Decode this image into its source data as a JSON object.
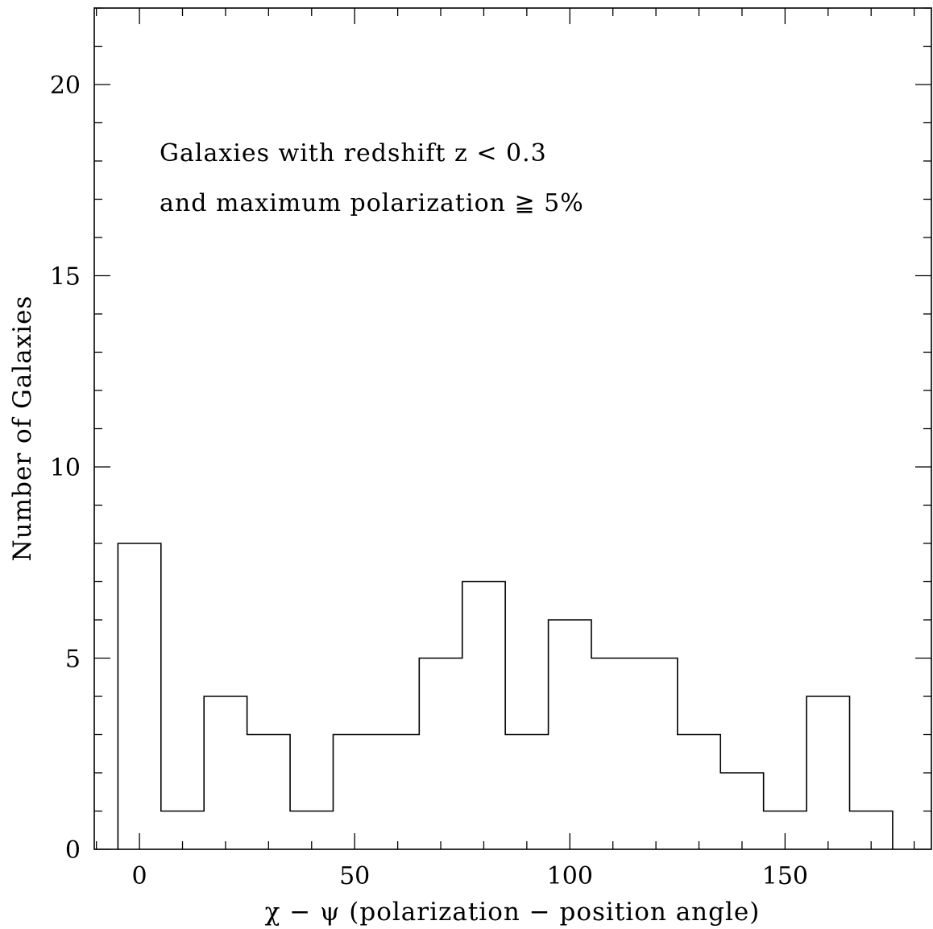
{
  "chart_data": {
    "type": "bar",
    "bin_edges": [
      -5,
      5,
      15,
      25,
      35,
      45,
      55,
      65,
      75,
      85,
      95,
      105,
      115,
      125,
      135,
      145,
      155,
      165,
      175
    ],
    "values": [
      8,
      1,
      4,
      3,
      1,
      3,
      3,
      5,
      7,
      3,
      6,
      5,
      5,
      3,
      2,
      1,
      4,
      1
    ],
    "xlim": [
      -10.5,
      184
    ],
    "ylim": [
      0,
      22
    ],
    "x_major_ticks": [
      0,
      50,
      100,
      150
    ],
    "x_minor_step": 10,
    "y_major_ticks": [
      0,
      5,
      10,
      15,
      20
    ],
    "y_minor_step": 1,
    "xlabel": "χ − ψ  (polarization − position angle)",
    "ylabel": "Number of Galaxies",
    "annotations": [
      "Galaxies with redshift z < 0.3",
      "and maximum polarization ≧ 5%"
    ]
  }
}
